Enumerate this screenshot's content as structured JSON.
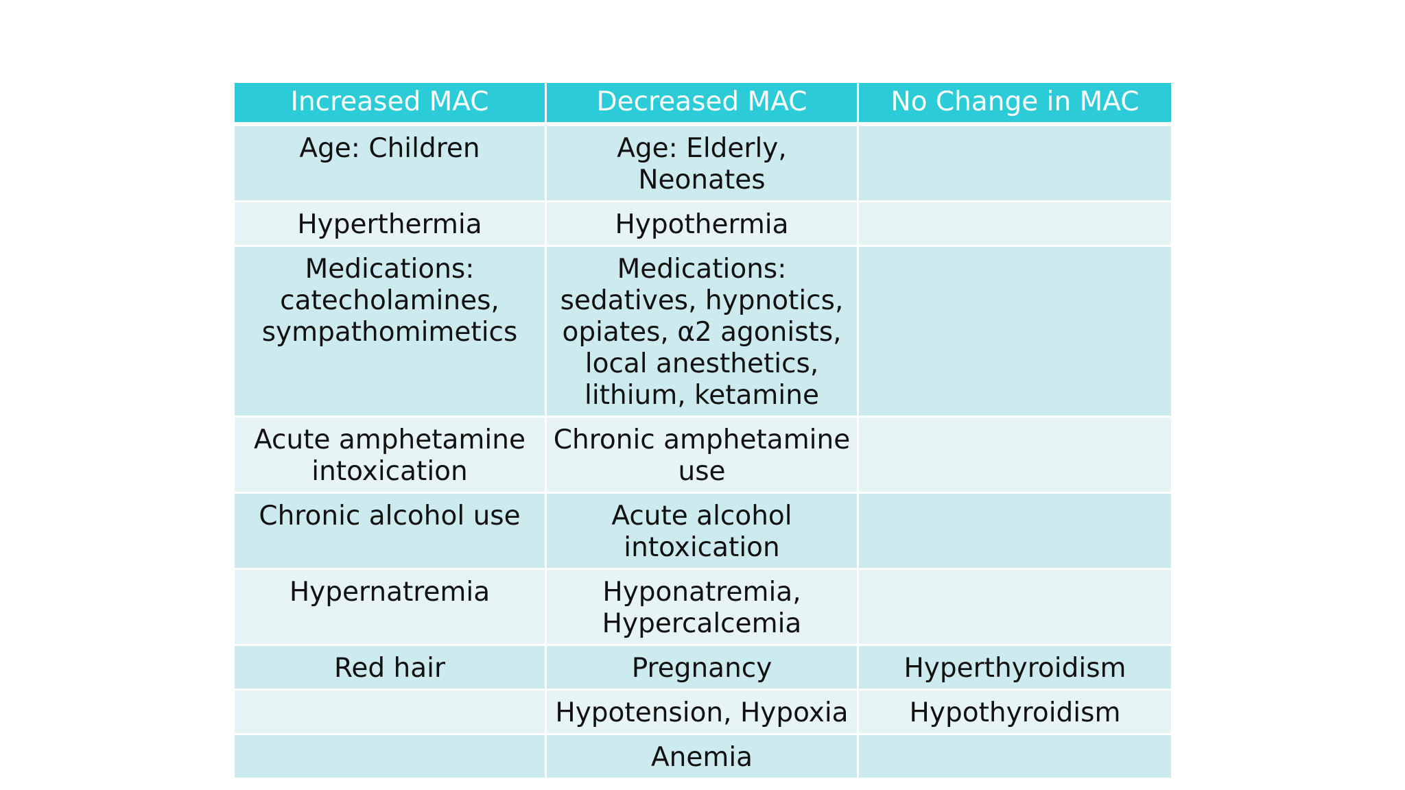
{
  "table": {
    "headers": [
      "Increased MAC",
      "Decreased MAC",
      "No Change in MAC"
    ],
    "rows": [
      [
        "Age:  Children",
        "Age:  Elderly,\nNeonates",
        ""
      ],
      [
        "Hyperthermia",
        "Hypothermia",
        ""
      ],
      [
        "Medications:\ncatecholamines,\nsympathomimetics",
        "Medications:\nsedatives, hypnotics,\nopiates, α2 agonists,\nlocal anesthetics,\nlithium, ketamine",
        ""
      ],
      [
        "Acute amphetamine\nintoxication",
        "Chronic amphetamine\nuse",
        ""
      ],
      [
        "Chronic alcohol use",
        "Acute alcohol\nintoxication",
        ""
      ],
      [
        "Hypernatremia",
        "Hyponatremia,\nHypercalcemia",
        ""
      ],
      [
        "Red hair",
        "Pregnancy",
        "Hyperthyroidism"
      ],
      [
        "",
        "Hypotension, Hypoxia",
        "Hypothyroidism"
      ],
      [
        "",
        "Anemia",
        ""
      ]
    ]
  },
  "colors": {
    "header_bg": "#2ccbd8",
    "band_dark": "#cdebee",
    "band_light": "#e6f4f5",
    "text": "#111111"
  }
}
